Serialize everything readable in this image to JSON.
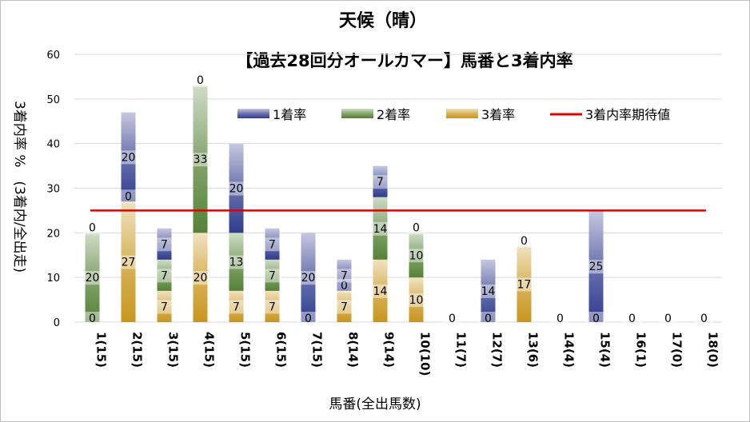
{
  "chart_data": {
    "type": "bar",
    "stacked": true,
    "title": "天候（晴）",
    "subtitle": "【過去28回分オールカマー】馬番と3着内率",
    "xlabel": "馬番(全出馬数)",
    "ylabel": "3着内率 %　(3着内/全出走)",
    "ylim": [
      0,
      60
    ],
    "yticks": [
      0,
      10,
      20,
      30,
      40,
      50,
      60
    ],
    "categories": [
      "1(15)",
      "2(15)",
      "3(15)",
      "4(15)",
      "5(15)",
      "6(15)",
      "7(15)",
      "8(14)",
      "9(14)",
      "10(10)",
      "11(7)",
      "12(7)",
      "13(6)",
      "14(4)",
      "15(4)",
      "16(1)",
      "17(0)",
      "18(0)"
    ],
    "series": [
      {
        "name": "3着率",
        "color": "#c8961e",
        "values": [
          0,
          27,
          7,
          20,
          7,
          7,
          0,
          7,
          14,
          10,
          0,
          0,
          17,
          0,
          0,
          0,
          0,
          0
        ]
      },
      {
        "name": "2着率",
        "color": "#548235",
        "values": [
          20,
          0,
          7,
          33,
          13,
          7,
          0,
          0,
          14,
          10,
          0,
          0,
          0,
          0,
          0,
          0,
          0,
          0
        ]
      },
      {
        "name": "1着率",
        "color": "#2f3c8e",
        "values": [
          0,
          20,
          7,
          0,
          20,
          7,
          20,
          7,
          7,
          0,
          0,
          14,
          0,
          0,
          25,
          0,
          0,
          0
        ]
      }
    ],
    "labels": [
      {
        "series": 0,
        "text": [
          "0",
          "27",
          "7",
          "20",
          "7",
          "7",
          "0",
          "7",
          "14",
          "10",
          "0",
          "0",
          "17",
          "0",
          "0",
          "0",
          "0",
          "0"
        ]
      },
      {
        "series": 1,
        "text": [
          "20",
          "0",
          "7",
          "33",
          "13",
          "7",
          "",
          "0",
          "14",
          "10",
          "",
          "",
          "0",
          "",
          "",
          "",
          "",
          ""
        ]
      },
      {
        "series": 2,
        "text": [
          "0",
          "20",
          "7",
          "0",
          "20",
          "7",
          "20",
          "7",
          "7",
          "0",
          "",
          "14",
          "",
          "",
          "25",
          "",
          "",
          ""
        ]
      }
    ],
    "reference_line": {
      "name": "3着内率期待値",
      "value": 25,
      "color": "#e00000"
    },
    "legend_position": "top-right",
    "legend": [
      {
        "name": "1着率",
        "color": "#2f3c8e"
      },
      {
        "name": "2着率",
        "color": "#548235"
      },
      {
        "name": "3着率",
        "color": "#c8961e"
      },
      {
        "name": "3着内率期待値",
        "color": "#e00000"
      }
    ],
    "grid": true
  }
}
